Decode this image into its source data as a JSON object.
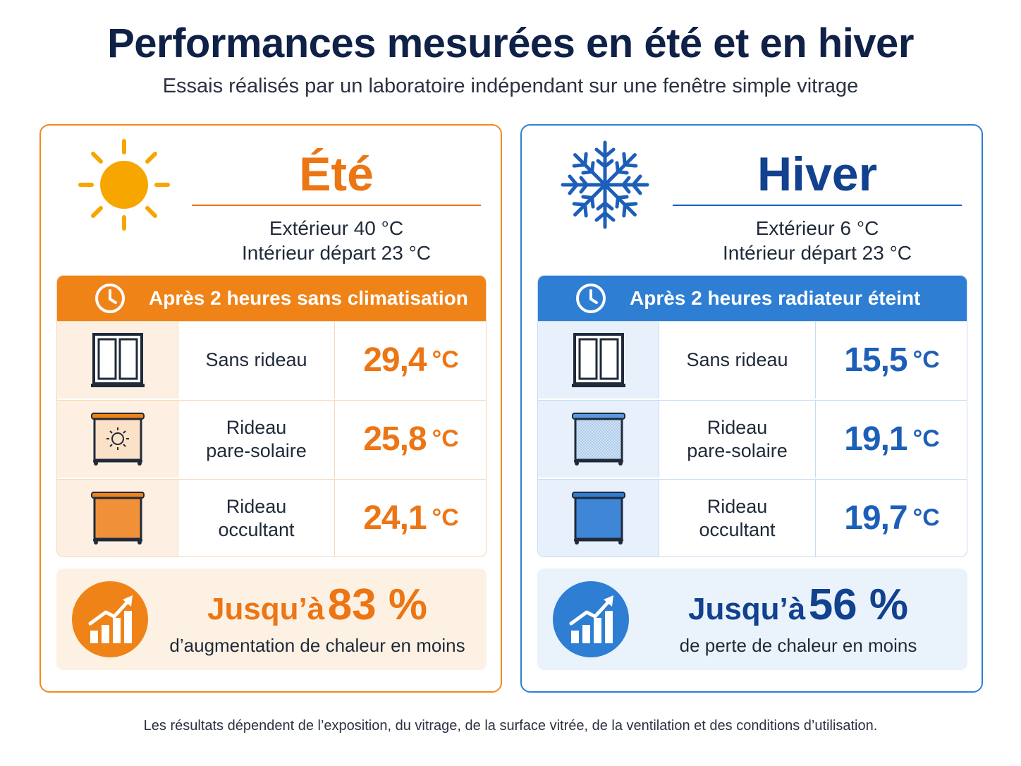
{
  "title": "Performances mesurées en été et en hiver",
  "subtitle": "Essais réalisés par un laboratoire indépendant sur une fenêtre simple vitrage",
  "summer": {
    "name": "Été",
    "icon": "sun-icon",
    "accent": "#ec7514",
    "exterior": "Extérieur 40 °C",
    "interior": "Intérieur départ 23 °C",
    "header": "Après 2 heures sans climatisation",
    "rows": [
      {
        "label": "Sans rideau",
        "value": "29,4",
        "unit": "°C",
        "icon": "window-icon"
      },
      {
        "label": "Rideau\npare-solaire",
        "value": "25,8",
        "unit": "°C",
        "icon": "sun-shade-curtain-icon"
      },
      {
        "label": "Rideau\noccultant",
        "value": "24,1",
        "unit": "°C",
        "icon": "blackout-curtain-icon"
      }
    ],
    "gain_prefix": "Jusqu’à",
    "gain_value": "83 %",
    "gain_text": "d’augmentation de chaleur en moins"
  },
  "winter": {
    "name": "Hiver",
    "icon": "snowflake-icon",
    "accent": "#1d5fb8",
    "exterior": "Extérieur 6 °C",
    "interior": "Intérieur départ 23 °C",
    "header": "Après 2 heures radiateur éteint",
    "rows": [
      {
        "label": "Sans rideau",
        "value": "15,5",
        "unit": "°C",
        "icon": "window-icon"
      },
      {
        "label": "Rideau\npare-solaire",
        "value": "19,1",
        "unit": "°C",
        "icon": "sun-shade-curtain-icon"
      },
      {
        "label": "Rideau\noccultant",
        "value": "19,7",
        "unit": "°C",
        "icon": "blackout-curtain-icon"
      }
    ],
    "gain_prefix": "Jusqu’à",
    "gain_value": "56 %",
    "gain_text": "de perte de chaleur en moins"
  },
  "disclaimer": "Les résultats dépendent de l’exposition, du vitrage, de la surface vitrée, de la ventilation et des conditions d’utilisation."
}
